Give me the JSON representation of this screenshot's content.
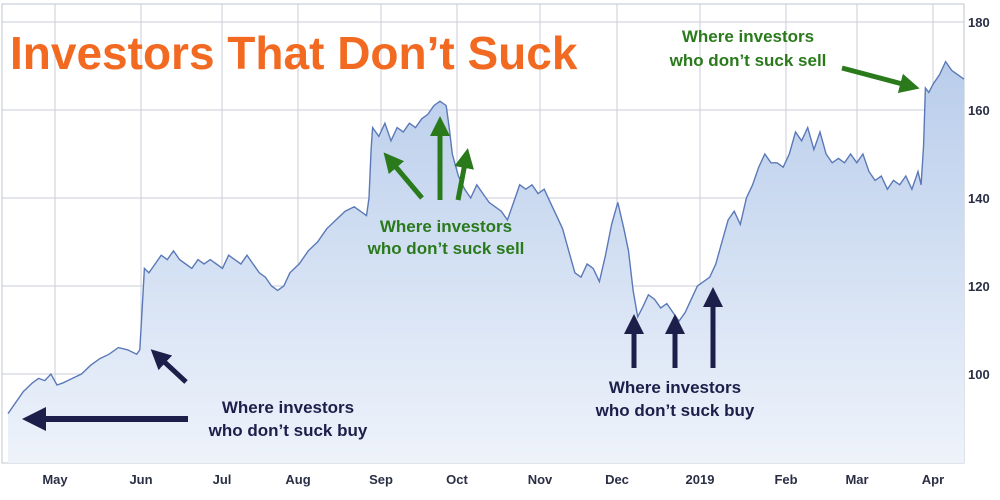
{
  "chart_data": {
    "type": "area",
    "title": "Investors That Don’t Suck",
    "xlabel": "",
    "ylabel": "",
    "x_tick_labels": [
      "May",
      "Jun",
      "Jul",
      "Aug",
      "Sep",
      "Oct",
      "Nov",
      "Dec",
      "2019",
      "Feb",
      "Mar",
      "Apr"
    ],
    "y_ticks": [
      100,
      120,
      140,
      160,
      180
    ],
    "ylim": [
      80,
      180
    ],
    "grid": true,
    "y_axis_side": "right",
    "colors": {
      "line": "#5b79b8",
      "fill_top": "#b9cdeb",
      "fill_bottom": "#eef3fb",
      "grid": "#c9ced8",
      "title": "#f26a21",
      "buy_arrow": "#1c1f4a",
      "sell_arrow": "#2a7a1c"
    },
    "series": [
      {
        "points": [
          [
            0,
            91
          ],
          [
            2,
            93
          ],
          [
            5,
            96
          ],
          [
            8,
            98
          ],
          [
            10,
            99
          ],
          [
            12,
            98.5
          ],
          [
            14,
            100
          ],
          [
            16,
            97.5
          ],
          [
            18,
            98
          ],
          [
            21,
            99
          ],
          [
            24,
            100
          ],
          [
            27,
            102
          ],
          [
            30,
            103.5
          ],
          [
            33,
            104.5
          ],
          [
            36,
            106
          ],
          [
            39,
            105.5
          ],
          [
            42,
            104.5
          ],
          [
            43,
            105.5
          ],
          [
            43.8,
            115
          ],
          [
            44.5,
            124
          ],
          [
            46,
            123
          ],
          [
            48,
            125
          ],
          [
            50,
            127
          ],
          [
            52,
            126
          ],
          [
            54,
            128
          ],
          [
            56,
            126
          ],
          [
            58,
            125
          ],
          [
            60,
            124
          ],
          [
            62,
            126
          ],
          [
            64,
            125
          ],
          [
            66,
            126
          ],
          [
            68,
            125
          ],
          [
            70,
            124
          ],
          [
            72,
            127
          ],
          [
            74,
            126
          ],
          [
            76,
            125
          ],
          [
            78,
            127
          ],
          [
            80,
            125
          ],
          [
            82,
            123
          ],
          [
            84,
            122
          ],
          [
            86,
            120
          ],
          [
            88,
            119
          ],
          [
            90,
            120
          ],
          [
            92,
            123
          ],
          [
            95,
            125
          ],
          [
            98,
            128
          ],
          [
            101,
            130
          ],
          [
            104,
            133
          ],
          [
            107,
            135
          ],
          [
            110,
            137
          ],
          [
            113,
            138
          ],
          [
            115,
            137
          ],
          [
            117,
            136
          ],
          [
            117.8,
            140
          ],
          [
            118.5,
            151
          ],
          [
            119,
            156
          ],
          [
            121,
            154
          ],
          [
            123,
            157
          ],
          [
            125,
            153
          ],
          [
            127,
            156
          ],
          [
            129,
            155
          ],
          [
            131,
            157
          ],
          [
            133,
            156
          ],
          [
            135,
            158
          ],
          [
            137,
            159
          ],
          [
            139,
            161
          ],
          [
            141,
            162
          ],
          [
            143,
            161
          ],
          [
            144,
            156
          ],
          [
            145,
            150
          ],
          [
            147,
            145
          ],
          [
            149,
            142
          ],
          [
            151,
            140
          ],
          [
            153,
            143
          ],
          [
            155,
            141
          ],
          [
            157,
            139
          ],
          [
            159,
            138
          ],
          [
            161,
            137
          ],
          [
            163,
            135
          ],
          [
            165,
            139
          ],
          [
            167,
            143
          ],
          [
            169,
            142
          ],
          [
            171,
            143
          ],
          [
            173,
            141
          ],
          [
            175,
            142
          ],
          [
            177,
            139
          ],
          [
            179,
            136
          ],
          [
            181,
            133
          ],
          [
            183,
            128
          ],
          [
            185,
            123
          ],
          [
            187,
            122
          ],
          [
            189,
            125
          ],
          [
            191,
            124
          ],
          [
            193,
            121
          ],
          [
            195,
            127
          ],
          [
            197,
            134
          ],
          [
            199,
            139
          ],
          [
            201,
            133
          ],
          [
            202.5,
            128
          ],
          [
            204,
            119
          ],
          [
            205.5,
            113
          ],
          [
            207,
            115
          ],
          [
            209,
            118
          ],
          [
            211,
            117
          ],
          [
            213,
            115
          ],
          [
            215,
            116
          ],
          [
            217,
            114
          ],
          [
            219,
            112
          ],
          [
            221,
            114
          ],
          [
            223,
            117
          ],
          [
            225,
            120
          ],
          [
            227,
            121
          ],
          [
            229,
            122
          ],
          [
            231,
            125
          ],
          [
            233,
            130
          ],
          [
            235,
            135
          ],
          [
            237,
            137
          ],
          [
            239,
            134
          ],
          [
            241,
            140
          ],
          [
            243,
            143
          ],
          [
            245,
            147
          ],
          [
            247,
            150
          ],
          [
            249,
            148
          ],
          [
            251,
            148
          ],
          [
            253,
            147
          ],
          [
            255,
            150
          ],
          [
            257,
            155
          ],
          [
            259,
            153
          ],
          [
            261,
            156
          ],
          [
            263,
            151
          ],
          [
            265,
            155
          ],
          [
            267,
            150
          ],
          [
            269,
            148
          ],
          [
            271,
            149
          ],
          [
            273,
            148
          ],
          [
            275,
            150
          ],
          [
            277,
            148
          ],
          [
            279,
            150
          ],
          [
            281,
            146
          ],
          [
            283,
            144
          ],
          [
            285,
            145
          ],
          [
            287,
            142
          ],
          [
            289,
            144
          ],
          [
            291,
            143
          ],
          [
            293,
            145
          ],
          [
            295,
            142
          ],
          [
            297,
            146
          ],
          [
            298,
            143
          ],
          [
            298.8,
            152
          ],
          [
            299.4,
            165
          ],
          [
            300.5,
            164
          ],
          [
            302,
            166
          ],
          [
            304,
            168
          ],
          [
            306,
            171
          ],
          [
            308,
            169
          ],
          [
            310,
            168
          ],
          [
            312,
            167
          ]
        ]
      }
    ],
    "annotations": [
      {
        "label": "Where investors who don’t suck buy",
        "group": "buy"
      },
      {
        "label": "Where investors who don’t suck sell",
        "group": "sell"
      },
      {
        "label": "Where investors who don’t suck buy",
        "group": "buy"
      },
      {
        "label": "Where investors who don’t suck sell",
        "group": "sell"
      }
    ]
  },
  "annotations_text": {
    "buy_left": [
      "Where investors",
      "who don’t suck buy"
    ],
    "sell_middle": [
      "Where investors",
      "who don’t suck sell"
    ],
    "buy_right": [
      "Where investors",
      "who don’t suck buy"
    ],
    "sell_top": [
      "Where investors",
      "who don’t suck sell"
    ]
  }
}
